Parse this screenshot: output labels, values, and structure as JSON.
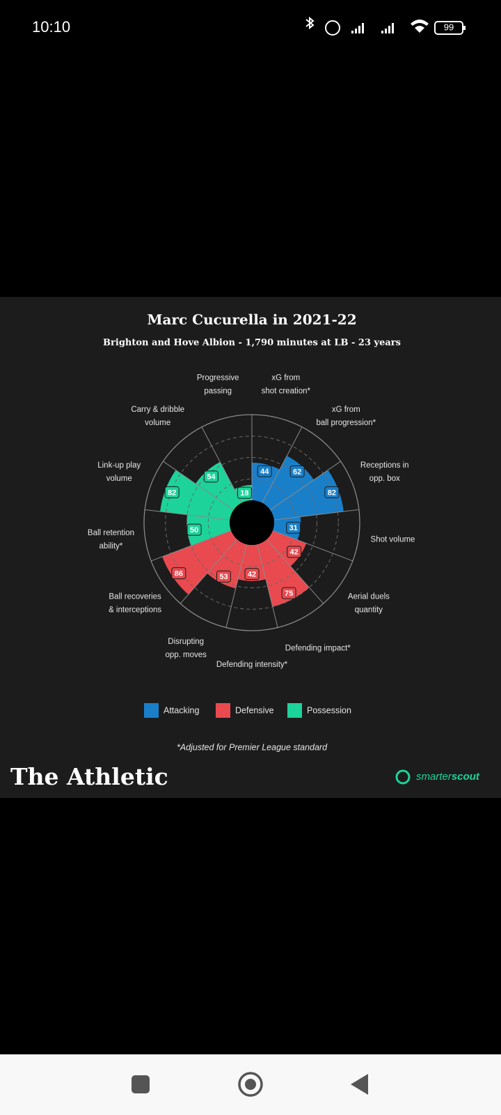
{
  "status_bar": {
    "time": "10:10",
    "battery": "99"
  },
  "chart_data": {
    "type": "polar_bar",
    "title": "Marc Cucurella in 2021-22",
    "subtitle": "Brighton and Hove Albion - 1,790 minutes at LB - 23 years",
    "categories": [
      [
        "xG from",
        "shot creation*"
      ],
      [
        "xG from",
        "ball progression*"
      ],
      [
        "Receptions in",
        "opp. box"
      ],
      [
        "Shot volume"
      ],
      [
        "Aerial duels",
        "quantity"
      ],
      [
        "Defending impact*"
      ],
      [
        "Defending intensity*"
      ],
      [
        "Disrupting",
        "opp. moves"
      ],
      [
        "Ball recoveries",
        "& interceptions"
      ],
      [
        "Ball retention",
        "ability*"
      ],
      [
        "Link-up play",
        "volume"
      ],
      [
        "Carry & dribble",
        "volume"
      ],
      [
        "Progressive",
        "passing"
      ]
    ],
    "series": [
      {
        "name": "Attacking",
        "color": "#1a7fc9",
        "values": [
          44,
          62,
          82,
          31,
          null,
          null,
          null,
          null,
          null,
          null,
          null,
          null,
          null
        ]
      },
      {
        "name": "Defensive",
        "color": "#e84a4f",
        "values": [
          null,
          null,
          null,
          null,
          42,
          75,
          42,
          53,
          86,
          null,
          null,
          null,
          null
        ]
      },
      {
        "name": "Possession",
        "color": "#1dd39a",
        "values": [
          null,
          null,
          null,
          null,
          null,
          null,
          null,
          null,
          null,
          50,
          82,
          54,
          18
        ]
      }
    ],
    "ylim": [
      0,
      100
    ],
    "yticks": [
      25,
      50,
      75,
      100
    ],
    "legend": "bottom",
    "footnote": "*Adjusted for Premier League standard"
  },
  "branding": {
    "publisher": "The Athletic",
    "partner": [
      "smarter",
      "scout"
    ]
  }
}
